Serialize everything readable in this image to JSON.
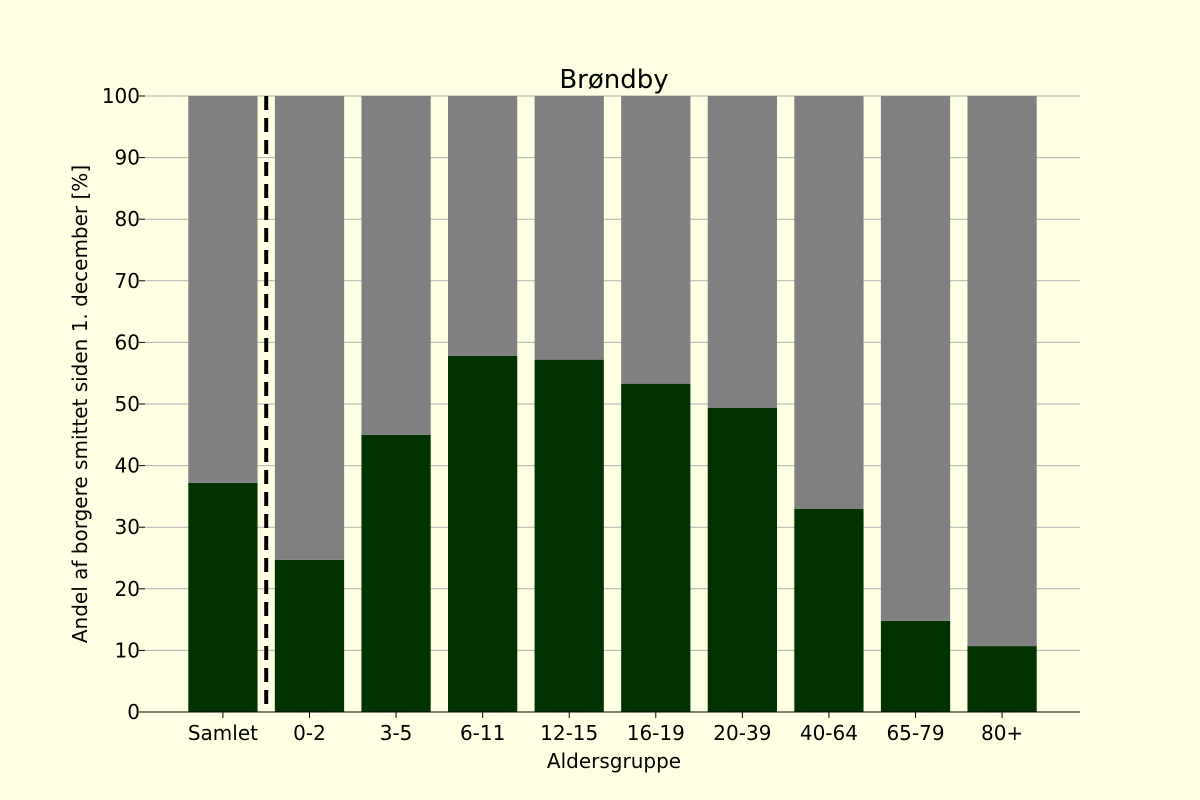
{
  "chart_data": {
    "type": "bar",
    "title": "Brøndby",
    "xlabel": "Aldersgruppe",
    "ylabel": "Andel af borgere smittet siden 1. december [%]",
    "categories": [
      "Samlet",
      "0-2",
      "3-5",
      "6-11",
      "12-15",
      "16-19",
      "20-39",
      "40-64",
      "65-79",
      "80+"
    ],
    "series": [
      {
        "values": [
          37.2,
          24.7,
          45.0,
          57.8,
          57.2,
          53.3,
          49.4,
          33.0,
          14.8,
          10.7
        ],
        "color": "#003300"
      },
      {
        "values": [
          62.8,
          75.3,
          55.0,
          42.2,
          42.8,
          46.7,
          50.6,
          67.0,
          85.2,
          89.3
        ],
        "color": "#808080"
      }
    ],
    "stacked": true,
    "ylim": [
      0,
      100
    ],
    "yticks": [
      0,
      10,
      20,
      30,
      40,
      50,
      60,
      70,
      80,
      90,
      100
    ],
    "grid": "y",
    "separator_after": "Samlet",
    "colors": {
      "background": "#ffffe3",
      "grid": "#b0b0b0"
    }
  }
}
